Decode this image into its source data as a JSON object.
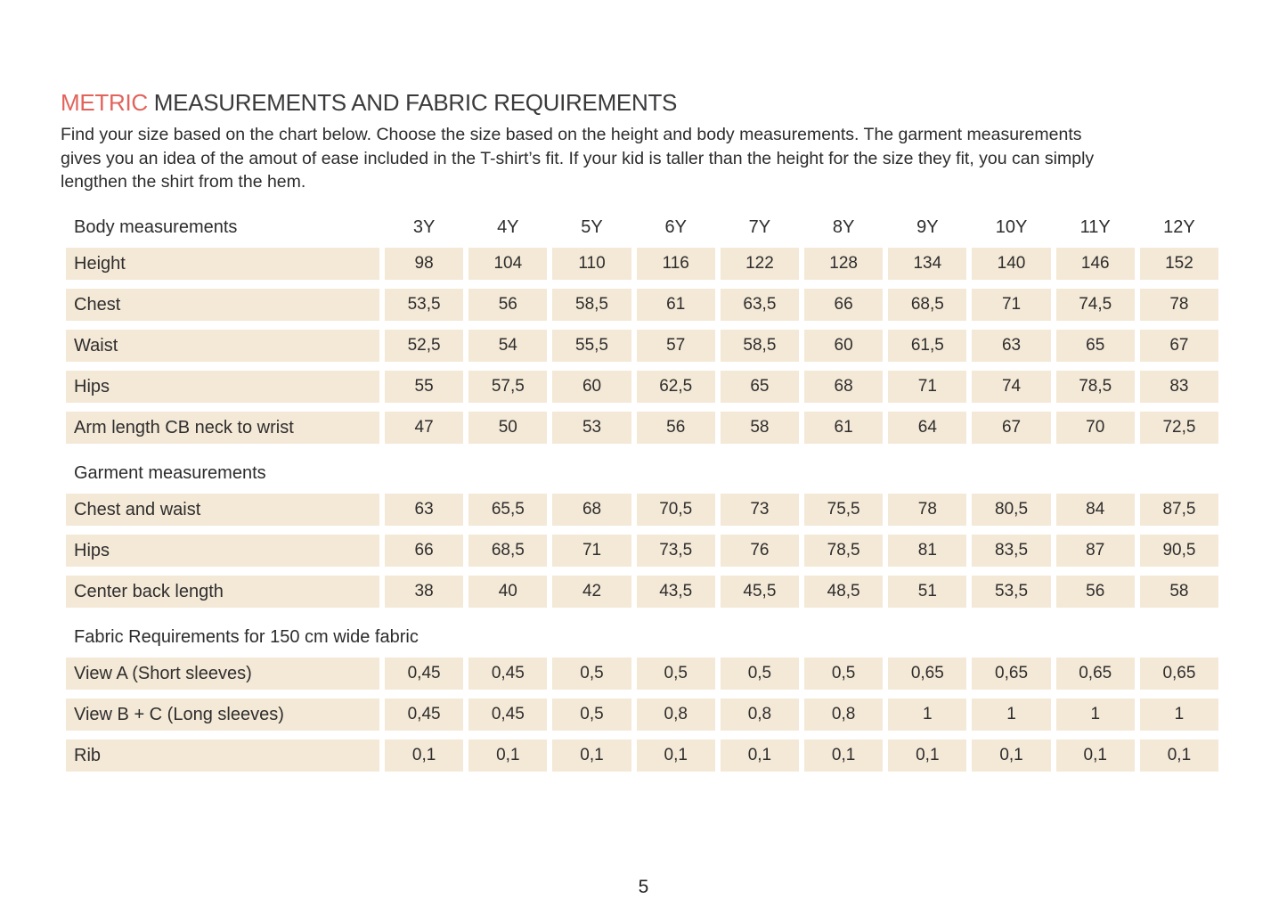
{
  "page": {
    "title_accent": "METRIC",
    "title_rest": "MEASUREMENTS AND FABRIC REQUIREMENTS",
    "intro_lines": [
      "Find your size based on the chart below. Choose the size based on the height and body measurements. The garment measurements",
      "gives you an idea of the amout of ease included in the T-shirt’s fit. If your kid is taller than the height for the size they fit, you can simply",
      "lengthen the shirt from the hem."
    ],
    "page_number": "5"
  },
  "colors": {
    "accent": "#e2635b",
    "cell_background": "#f4e8d6",
    "text": "#2e2e2e"
  },
  "table": {
    "size_headers": [
      "3Y",
      "4Y",
      "5Y",
      "6Y",
      "7Y",
      "8Y",
      "9Y",
      "10Y",
      "11Y",
      "12Y"
    ],
    "sections": [
      {
        "header": "Body measurements",
        "show_sizes": true,
        "rows": [
          {
            "label": "Height",
            "values": [
              "98",
              "104",
              "110",
              "116",
              "122",
              "128",
              "134",
              "140",
              "146",
              "152"
            ]
          },
          {
            "label": "Chest",
            "values": [
              "53,5",
              "56",
              "58,5",
              "61",
              "63,5",
              "66",
              "68,5",
              "71",
              "74,5",
              "78"
            ]
          },
          {
            "label": "Waist",
            "values": [
              "52,5",
              "54",
              "55,5",
              "57",
              "58,5",
              "60",
              "61,5",
              "63",
              "65",
              "67"
            ]
          },
          {
            "label": "Hips",
            "values": [
              "55",
              "57,5",
              "60",
              "62,5",
              "65",
              "68",
              "71",
              "74",
              "78,5",
              "83"
            ]
          },
          {
            "label": "Arm length CB neck to wrist",
            "values": [
              "47",
              "50",
              "53",
              "56",
              "58",
              "61",
              "64",
              "67",
              "70",
              "72,5"
            ]
          }
        ]
      },
      {
        "header": "Garment measurements",
        "show_sizes": false,
        "rows": [
          {
            "label": "Chest and waist",
            "values": [
              "63",
              "65,5",
              "68",
              "70,5",
              "73",
              "75,5",
              "78",
              "80,5",
              "84",
              "87,5"
            ]
          },
          {
            "label": "Hips",
            "values": [
              "66",
              "68,5",
              "71",
              "73,5",
              "76",
              "78,5",
              "81",
              "83,5",
              "87",
              "90,5"
            ]
          },
          {
            "label": "Center back length",
            "values": [
              "38",
              "40",
              "42",
              "43,5",
              "45,5",
              "48,5",
              "51",
              "53,5",
              "56",
              "58"
            ]
          }
        ]
      },
      {
        "header": "Fabric Requirements for 150 cm wide fabric",
        "show_sizes": false,
        "rows": [
          {
            "label": "View A (Short sleeves)",
            "values": [
              "0,45",
              "0,45",
              "0,5",
              "0,5",
              "0,5",
              "0,5",
              "0,65",
              "0,65",
              "0,65",
              "0,65"
            ]
          },
          {
            "label": "View B + C (Long sleeves)",
            "values": [
              "0,45",
              "0,45",
              "0,5",
              "0,8",
              "0,8",
              "0,8",
              "1",
              "1",
              "1",
              "1"
            ]
          },
          {
            "label": "Rib",
            "values": [
              "0,1",
              "0,1",
              "0,1",
              "0,1",
              "0,1",
              "0,1",
              "0,1",
              "0,1",
              "0,1",
              "0,1"
            ]
          }
        ]
      }
    ]
  }
}
